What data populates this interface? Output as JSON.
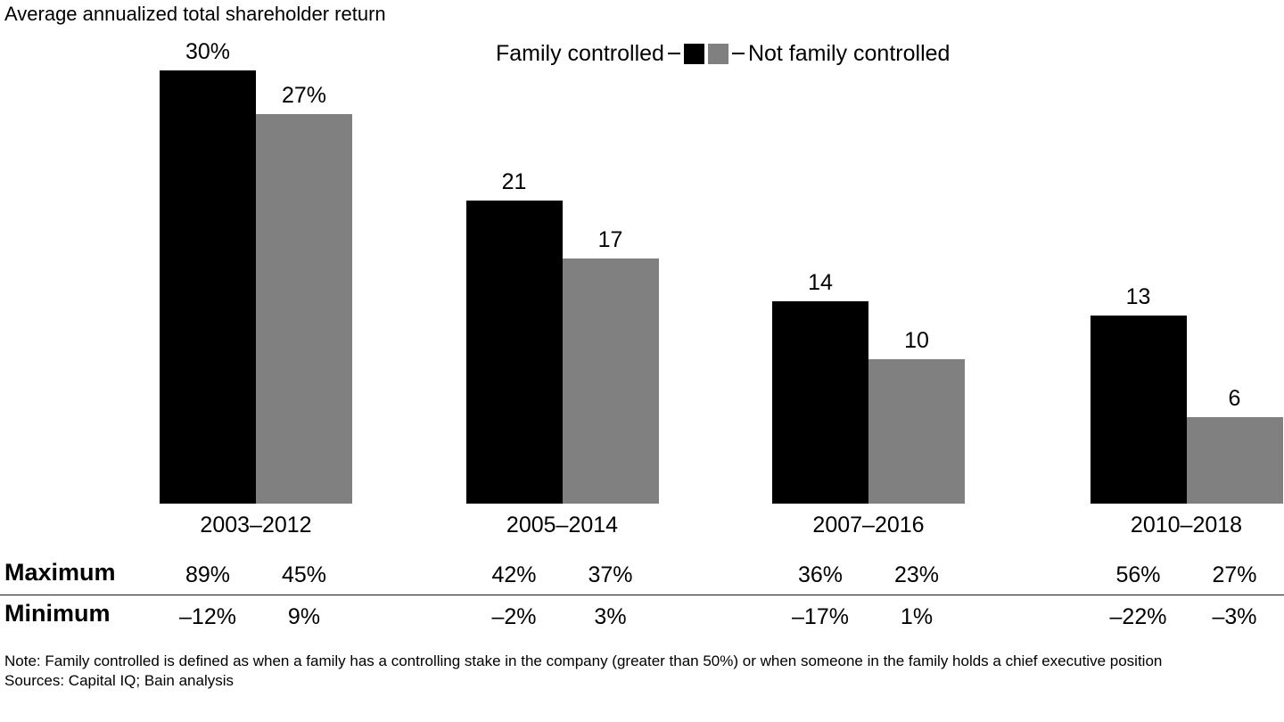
{
  "title": "Average annualized total shareholder return",
  "legend": {
    "family_label": "Family controlled",
    "not_family_label": "Not family controlled"
  },
  "colors": {
    "family": "#000000",
    "not_family": "#808080"
  },
  "chart_data": {
    "type": "bar",
    "title": "Average annualized total shareholder return",
    "categories": [
      "2003–2012",
      "2005–2014",
      "2007–2016",
      "2010–2018"
    ],
    "series": [
      {
        "name": "Family controlled",
        "color": "#000000",
        "values": [
          30,
          21,
          14,
          13
        ],
        "labels": [
          "30%",
          "21",
          "14",
          "13"
        ]
      },
      {
        "name": "Not family controlled",
        "color": "#808080",
        "values": [
          27,
          17,
          10,
          6
        ],
        "labels": [
          "27%",
          "17",
          "10",
          "6"
        ]
      }
    ],
    "unit": "percent",
    "ylim": [
      0,
      30
    ],
    "grid": false,
    "axes_shown": false,
    "legend_position": "top-center",
    "value_labels": "above-bars"
  },
  "table": {
    "rows": [
      {
        "label": "Maximum",
        "values": [
          "89%",
          "45%",
          "42%",
          "37%",
          "36%",
          "23%",
          "56%",
          "27%"
        ]
      },
      {
        "label": "Minimum",
        "values": [
          "–12%",
          "9%",
          "–2%",
          "3%",
          "–17%",
          "1%",
          "–22%",
          "–3%"
        ]
      }
    ]
  },
  "footnotes": {
    "note": "Note: Family controlled is defined as when a family has a controlling stake in the company (greater than 50%) or when someone in the family holds a chief executive position",
    "sources": "Sources: Capital IQ; Bain analysis"
  }
}
